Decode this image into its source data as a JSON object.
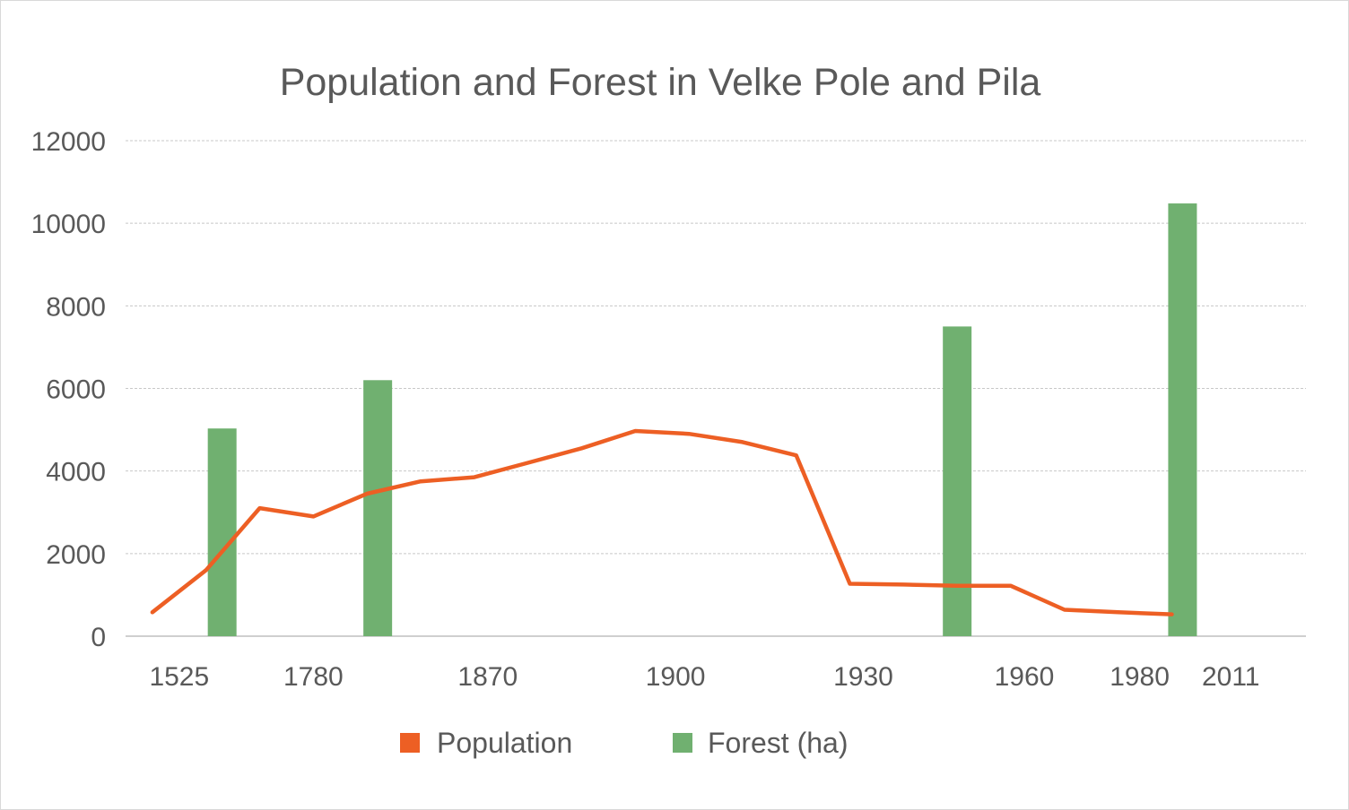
{
  "chart_data": {
    "type": "bar+line",
    "title": "Population and Forest in Velke Pole and Pila",
    "xlabel": "",
    "ylabel": "",
    "ylim": [
      0,
      12000
    ],
    "y_ticks": [
      "0",
      "2000",
      "4000",
      "6000",
      "8000",
      "10000",
      "12000"
    ],
    "x_tick_labels": [
      "1525",
      "1780",
      "1870",
      "1900",
      "1930",
      "1960",
      "1980",
      "2011"
    ],
    "grid": true,
    "legend_position": "bottom",
    "colors": {
      "population": "#ed5f24",
      "forest": "#70b070"
    },
    "series": [
      {
        "name": "Population",
        "type": "line",
        "points": [
          {
            "i": 0.5,
            "y": 580
          },
          {
            "i": 1.5,
            "y": 1600
          },
          {
            "i": 2.5,
            "y": 3100
          },
          {
            "i": 3.5,
            "y": 2900
          },
          {
            "i": 4.5,
            "y": 3450
          },
          {
            "i": 5.5,
            "y": 3750
          },
          {
            "i": 6.5,
            "y": 3850
          },
          {
            "i": 7.5,
            "y": 4200
          },
          {
            "i": 8.5,
            "y": 4550
          },
          {
            "i": 9.5,
            "y": 4970
          },
          {
            "i": 10.5,
            "y": 4900
          },
          {
            "i": 11.5,
            "y": 4700
          },
          {
            "i": 12.5,
            "y": 4380
          },
          {
            "i": 13.5,
            "y": 1270
          },
          {
            "i": 14.5,
            "y": 1250
          },
          {
            "i": 15.5,
            "y": 1220
          },
          {
            "i": 16.5,
            "y": 1220
          },
          {
            "i": 17.5,
            "y": 640
          },
          {
            "i": 18.5,
            "y": 580
          },
          {
            "i": 19.5,
            "y": 530
          }
        ]
      },
      {
        "name": "Forest (ha)",
        "type": "bar",
        "points": [
          {
            "i": 1.8,
            "y": 5030
          },
          {
            "i": 4.7,
            "y": 6200
          },
          {
            "i": 15.5,
            "y": 7500
          },
          {
            "i": 19.7,
            "y": 10480
          }
        ]
      }
    ],
    "x_tick_positions": [
      1.0,
      3.5,
      6.75,
      10.25,
      13.75,
      16.75,
      18.9,
      20.6
    ]
  }
}
